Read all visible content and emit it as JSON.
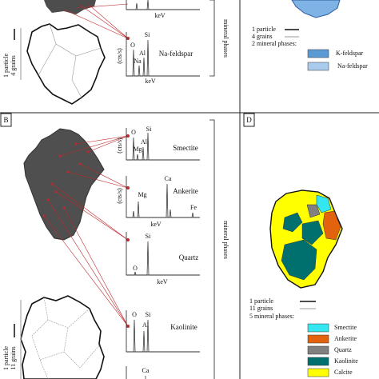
{
  "panel_a": {
    "grain_note": [
      "1 particle",
      "4 grains"
    ],
    "side_label": "mineral phases",
    "spectra": [
      {
        "x_label": "keV"
      },
      {
        "y_label": "(cts/s)",
        "peaks": [
          "O",
          "Si",
          "Al",
          "Na"
        ],
        "x_label": "keV",
        "mineral": "Na-feldspar"
      }
    ]
  },
  "panel_b": {
    "label": "B",
    "grain_note": [
      "1 particle",
      "11 grains"
    ],
    "side_label": "mineral phases",
    "spectra": [
      {
        "y_label": "(cts/s)",
        "peaks": [
          "O",
          "Si",
          "Al",
          "Mg"
        ],
        "mineral": "Smectite"
      },
      {
        "y_label": "(cts/s)",
        "peaks": [
          "Ca",
          "Mg",
          "Fe"
        ],
        "x_label": "keV",
        "mineral": "Ankerite"
      },
      {
        "peaks": [
          "Si",
          "O"
        ],
        "x_label": "keV",
        "mineral": "Quartz"
      },
      {
        "peaks": [
          "O",
          "Si",
          "Al"
        ],
        "mineral": "Kaolinite"
      },
      {
        "peaks": [
          "Ca"
        ]
      }
    ]
  },
  "panel_c": {
    "legend": [
      "1 particle",
      "4 grains",
      "2 mineral phases:"
    ],
    "phases": [
      "K-feldspar",
      "Na-feldspar"
    ]
  },
  "panel_d": {
    "label": "D",
    "legend": [
      "1 particle",
      "11 grains",
      "5 mineral phases:"
    ],
    "phases": [
      "Smectite",
      "Ankerite",
      "Quartz",
      "Kaolinite",
      "Calcite"
    ]
  }
}
